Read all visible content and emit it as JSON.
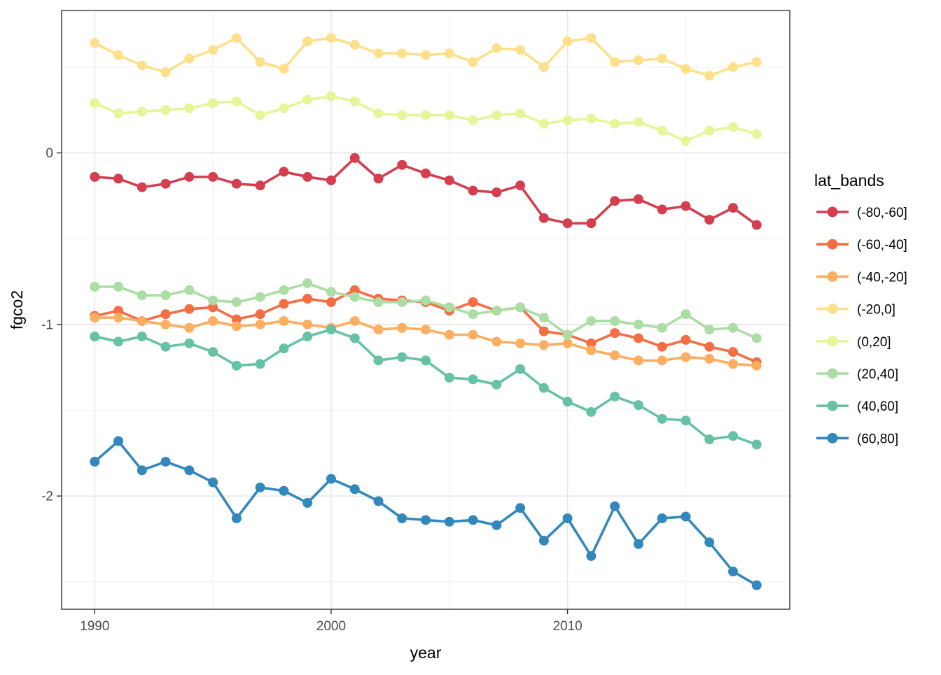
{
  "chart_data": {
    "type": "line",
    "title": "",
    "xlabel": "year",
    "ylabel": "fgco2",
    "legend_title": "lat_bands",
    "legend_position": "right",
    "grid": true,
    "panel_background": "#ffffff",
    "major_grid_color": "#e8e8e8",
    "minor_grid_color": "#f3f3f3",
    "panel_border_color": "#333333",
    "tick_text_color": "#4d4d4d",
    "xlim": [
      1988.6,
      2019.4
    ],
    "ylim": [
      -2.66,
      0.83
    ],
    "x_ticks": [
      1990,
      2000,
      2010
    ],
    "x_minor_ticks": [
      1995,
      2005,
      2015
    ],
    "y_ticks": [
      0,
      -1,
      -2
    ],
    "y_minor_ticks": [
      0.5,
      -0.5,
      -1.5,
      -2.5
    ],
    "x": [
      1990,
      1991,
      1992,
      1993,
      1994,
      1995,
      1996,
      1997,
      1998,
      1999,
      2000,
      2001,
      2002,
      2003,
      2004,
      2005,
      2006,
      2007,
      2008,
      2009,
      2010,
      2011,
      2012,
      2013,
      2014,
      2015,
      2016,
      2017,
      2018
    ],
    "series": [
      {
        "name": "(-80,-60]",
        "color": "#D53E4F",
        "values": [
          -0.14,
          -0.15,
          -0.2,
          -0.18,
          -0.14,
          -0.14,
          -0.18,
          -0.19,
          -0.11,
          -0.14,
          -0.16,
          -0.03,
          -0.15,
          -0.07,
          -0.12,
          -0.16,
          -0.22,
          -0.23,
          -0.19,
          -0.38,
          -0.41,
          -0.41,
          -0.28,
          -0.27,
          -0.33,
          -0.31,
          -0.39,
          -0.32,
          -0.42
        ]
      },
      {
        "name": "(-60,-40]",
        "color": "#F46D43",
        "values": [
          -0.95,
          -0.92,
          -0.98,
          -0.94,
          -0.91,
          -0.9,
          -0.97,
          -0.94,
          -0.88,
          -0.85,
          -0.87,
          -0.8,
          -0.85,
          -0.86,
          -0.87,
          -0.92,
          -0.87,
          -0.92,
          -0.9,
          -1.04,
          -1.06,
          -1.11,
          -1.05,
          -1.08,
          -1.13,
          -1.09,
          -1.13,
          -1.16,
          -1.22
        ]
      },
      {
        "name": "(-40,-20]",
        "color": "#FDAE61",
        "values": [
          -0.96,
          -0.96,
          -0.98,
          -1.0,
          -1.02,
          -0.98,
          -1.01,
          -1.0,
          -0.98,
          -1.0,
          -1.02,
          -0.98,
          -1.03,
          -1.02,
          -1.03,
          -1.06,
          -1.06,
          -1.1,
          -1.11,
          -1.12,
          -1.11,
          -1.15,
          -1.18,
          -1.21,
          -1.21,
          -1.19,
          -1.2,
          -1.23,
          -1.24
        ]
      },
      {
        "name": "(-20,0]",
        "color": "#FEE08B",
        "values": [
          0.64,
          0.57,
          0.51,
          0.47,
          0.55,
          0.6,
          0.67,
          0.53,
          0.49,
          0.65,
          0.67,
          0.63,
          0.58,
          0.58,
          0.57,
          0.58,
          0.53,
          0.61,
          0.6,
          0.5,
          0.65,
          0.67,
          0.53,
          0.54,
          0.55,
          0.49,
          0.45,
          0.5,
          0.53
        ]
      },
      {
        "name": "(0,20]",
        "color": "#E6F598",
        "values": [
          0.29,
          0.23,
          0.24,
          0.25,
          0.26,
          0.29,
          0.3,
          0.22,
          0.26,
          0.31,
          0.33,
          0.3,
          0.23,
          0.22,
          0.22,
          0.22,
          0.19,
          0.22,
          0.23,
          0.17,
          0.19,
          0.2,
          0.17,
          0.18,
          0.13,
          0.07,
          0.13,
          0.15,
          0.11
        ]
      },
      {
        "name": "(20,40]",
        "color": "#ABDDA4",
        "values": [
          -0.78,
          -0.78,
          -0.83,
          -0.83,
          -0.8,
          -0.86,
          -0.87,
          -0.84,
          -0.8,
          -0.76,
          -0.81,
          -0.84,
          -0.87,
          -0.87,
          -0.86,
          -0.9,
          -0.94,
          -0.92,
          -0.9,
          -0.96,
          -1.06,
          -0.98,
          -0.98,
          -1.0,
          -1.02,
          -0.94,
          -1.03,
          -1.02,
          -1.08
        ]
      },
      {
        "name": "(40,60]",
        "color": "#66C2A5",
        "values": [
          -1.07,
          -1.1,
          -1.07,
          -1.13,
          -1.11,
          -1.16,
          -1.24,
          -1.23,
          -1.14,
          -1.07,
          -1.03,
          -1.08,
          -1.21,
          -1.19,
          -1.21,
          -1.31,
          -1.32,
          -1.35,
          -1.26,
          -1.37,
          -1.45,
          -1.51,
          -1.42,
          -1.47,
          -1.55,
          -1.56,
          -1.67,
          -1.65,
          -1.7
        ]
      },
      {
        "name": "(60,80]",
        "color": "#3288BD",
        "values": [
          -1.8,
          -1.68,
          -1.85,
          -1.8,
          -1.85,
          -1.92,
          -2.13,
          -1.95,
          -1.97,
          -2.04,
          -1.9,
          -1.96,
          -2.03,
          -2.13,
          -2.14,
          -2.15,
          -2.14,
          -2.17,
          -2.07,
          -2.26,
          -2.13,
          -2.35,
          -2.06,
          -2.28,
          -2.13,
          -2.12,
          -2.27,
          -2.44,
          -2.52
        ]
      }
    ]
  }
}
